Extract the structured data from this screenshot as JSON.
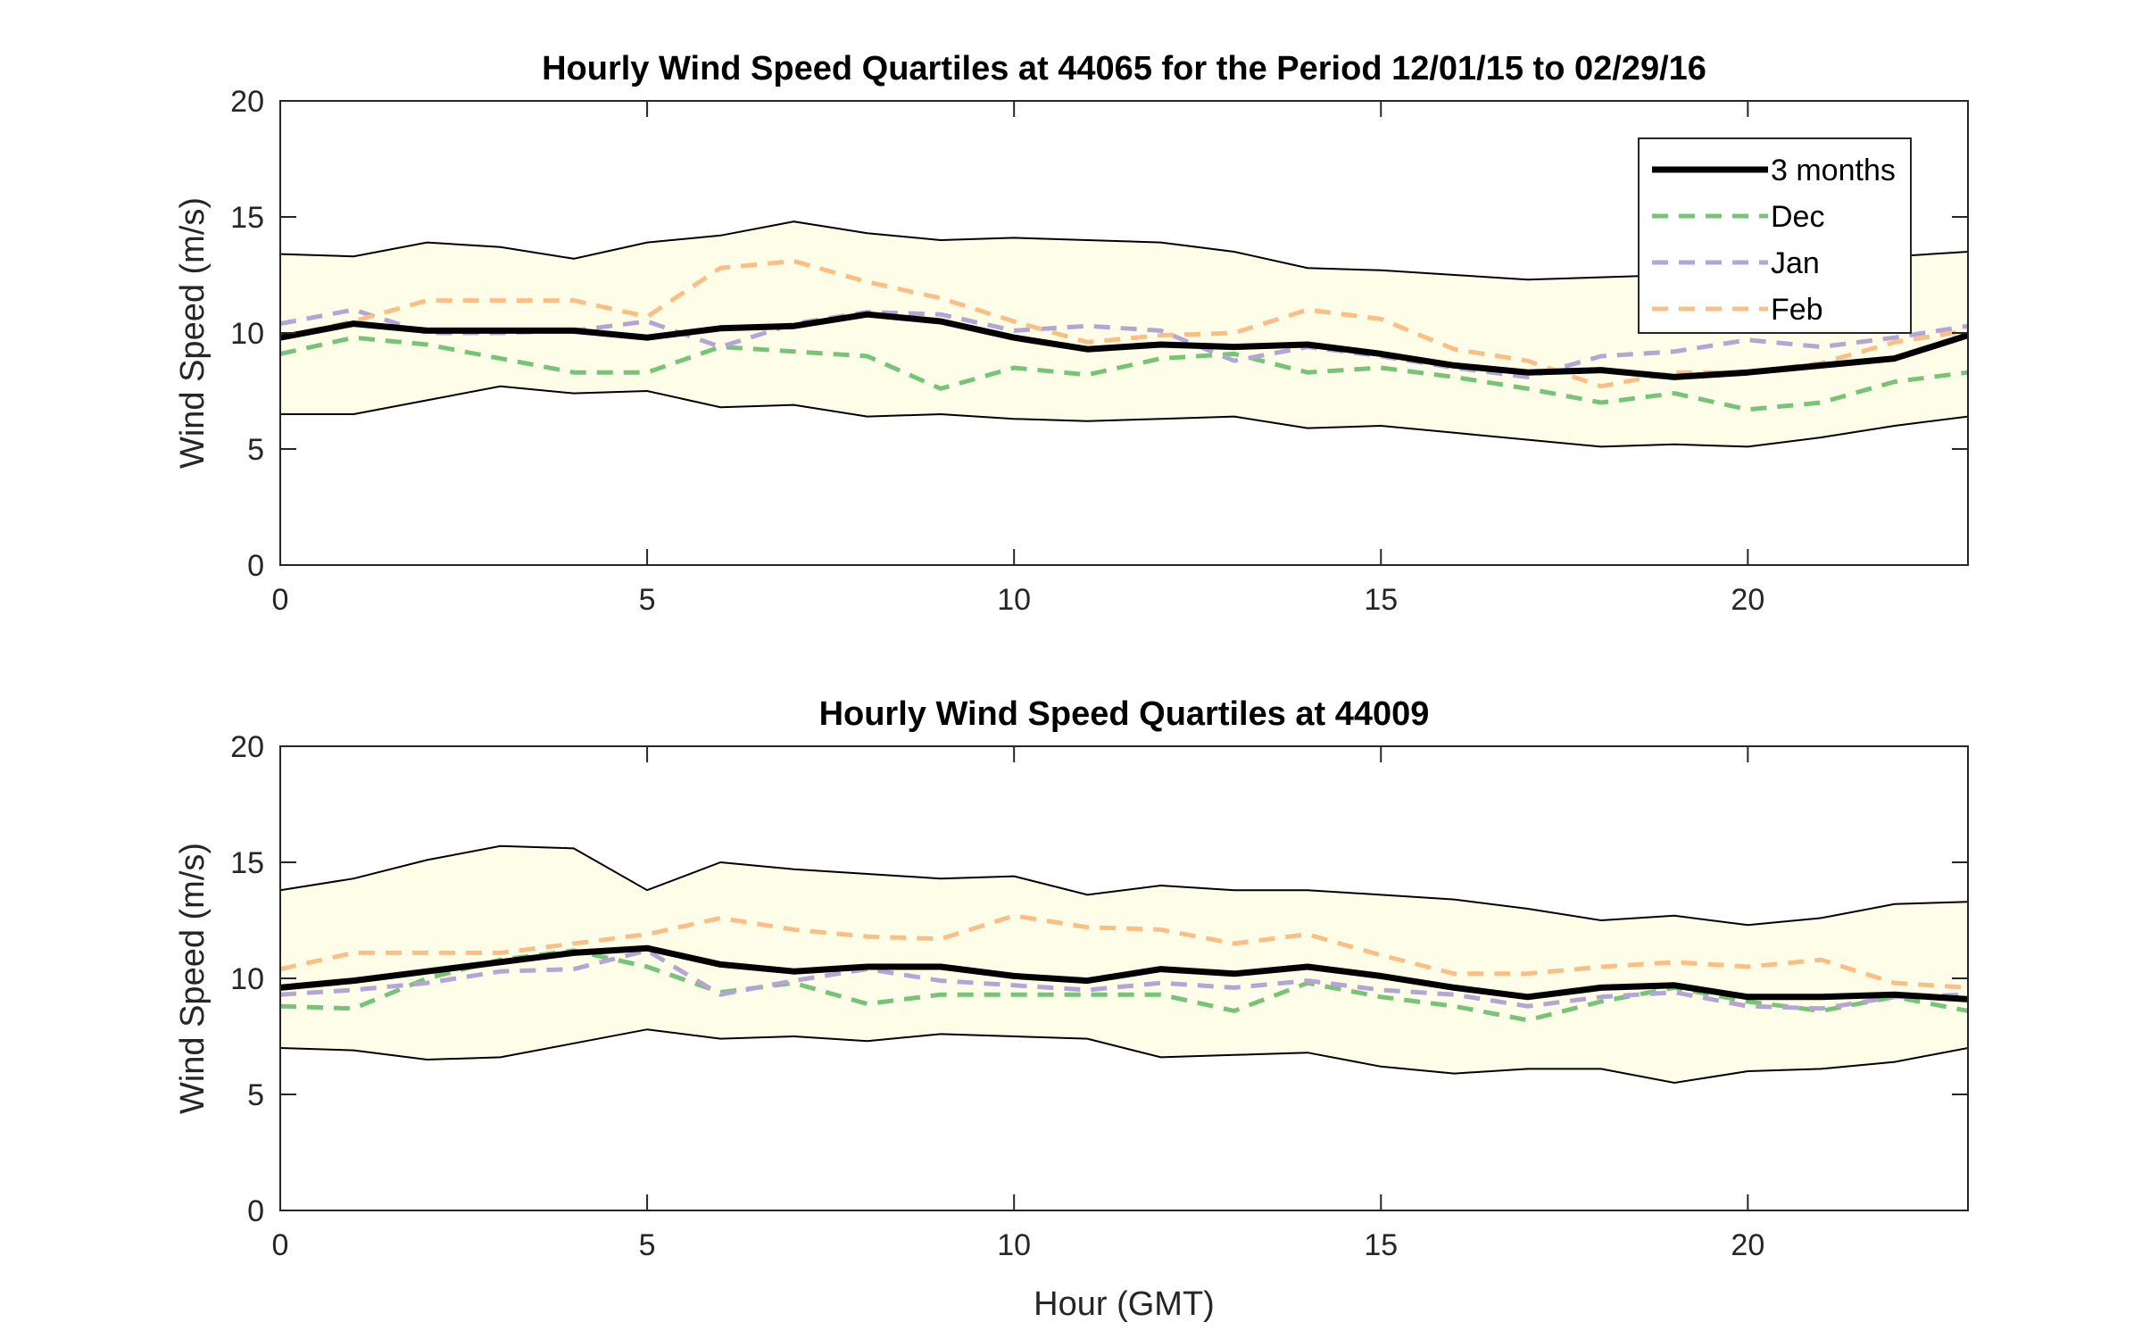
{
  "chart_data": [
    {
      "type": "line",
      "title": "Hourly Wind Speed Quartiles at 44065 for the Period 12/01/15 to 02/29/16",
      "xlabel": "",
      "ylabel": "Wind Speed (m/s)",
      "xlim": [
        0,
        23
      ],
      "ylim": [
        0,
        20
      ],
      "xticks": [
        0,
        5,
        10,
        15,
        20
      ],
      "yticks": [
        0,
        5,
        10,
        15,
        20
      ],
      "grid": false,
      "legend": {
        "placement": "top-right",
        "entries": [
          "3 months",
          "Dec",
          "Jan",
          "Feb"
        ]
      },
      "x": [
        0,
        1,
        2,
        3,
        4,
        5,
        6,
        7,
        8,
        9,
        10,
        11,
        12,
        13,
        14,
        15,
        16,
        17,
        18,
        19,
        20,
        21,
        22,
        23
      ],
      "band": {
        "fill": "#fefde8",
        "lower": [
          6.5,
          6.5,
          7.1,
          7.7,
          7.4,
          7.5,
          6.8,
          6.9,
          6.4,
          6.5,
          6.3,
          6.2,
          6.3,
          6.4,
          5.9,
          6.0,
          5.7,
          5.4,
          5.1,
          5.2,
          5.1,
          5.5,
          6.0,
          6.4
        ],
        "upper": [
          13.4,
          13.3,
          13.9,
          13.7,
          13.2,
          13.9,
          14.2,
          14.8,
          14.3,
          14.0,
          14.1,
          14.0,
          13.9,
          13.5,
          12.8,
          12.7,
          12.5,
          12.3,
          12.4,
          12.5,
          12.4,
          13.0,
          13.3,
          13.5
        ]
      },
      "series": [
        {
          "name": "3 months",
          "color": "#000000",
          "style": "solid",
          "values": [
            9.8,
            10.4,
            10.1,
            10.1,
            10.1,
            9.8,
            10.2,
            10.3,
            10.8,
            10.5,
            9.8,
            9.3,
            9.5,
            9.4,
            9.5,
            9.1,
            8.6,
            8.3,
            8.4,
            8.1,
            8.3,
            8.6,
            8.9,
            9.9
          ]
        },
        {
          "name": "Dec",
          "color": "#77c479",
          "style": "dashed",
          "values": [
            9.1,
            9.8,
            9.5,
            8.9,
            8.3,
            8.3,
            9.4,
            9.2,
            9.0,
            7.6,
            8.5,
            8.2,
            8.9,
            9.1,
            8.3,
            8.5,
            8.1,
            7.6,
            7.0,
            7.4,
            6.7,
            7.0,
            7.9,
            8.3
          ]
        },
        {
          "name": "Jan",
          "color": "#b3a6d6",
          "style": "dashed",
          "values": [
            10.4,
            11.0,
            10.0,
            10.0,
            10.1,
            10.5,
            9.4,
            10.4,
            10.9,
            10.8,
            10.1,
            10.3,
            10.1,
            8.8,
            9.4,
            9.0,
            8.5,
            8.1,
            9.0,
            9.2,
            9.7,
            9.4,
            9.8,
            10.3
          ]
        },
        {
          "name": "Feb",
          "color": "#fbbf86",
          "style": "dashed",
          "values": [
            9.8,
            10.5,
            11.4,
            11.4,
            11.4,
            10.7,
            12.8,
            13.1,
            12.2,
            11.5,
            10.5,
            9.6,
            9.9,
            10.0,
            11.0,
            10.6,
            9.3,
            8.8,
            7.7,
            8.3,
            8.3,
            8.7,
            9.6,
            10.1
          ]
        }
      ]
    },
    {
      "type": "line",
      "title": "Hourly Wind Speed Quartiles at 44009",
      "xlabel": "Hour (GMT)",
      "ylabel": "Wind Speed (m/s)",
      "xlim": [
        0,
        23
      ],
      "ylim": [
        0,
        20
      ],
      "xticks": [
        0,
        5,
        10,
        15,
        20
      ],
      "yticks": [
        0,
        5,
        10,
        15,
        20
      ],
      "grid": false,
      "x": [
        0,
        1,
        2,
        3,
        4,
        5,
        6,
        7,
        8,
        9,
        10,
        11,
        12,
        13,
        14,
        15,
        16,
        17,
        18,
        19,
        20,
        21,
        22,
        23
      ],
      "band": {
        "fill": "#fefde8",
        "lower": [
          7.0,
          6.9,
          6.5,
          6.6,
          7.2,
          7.8,
          7.4,
          7.5,
          7.3,
          7.6,
          7.5,
          7.4,
          6.6,
          6.7,
          6.8,
          6.2,
          5.9,
          6.1,
          6.1,
          5.5,
          6.0,
          6.1,
          6.4,
          7.0
        ],
        "upper": [
          13.8,
          14.3,
          15.1,
          15.7,
          15.6,
          13.8,
          15.0,
          14.7,
          14.5,
          14.3,
          14.4,
          13.6,
          14.0,
          13.8,
          13.8,
          13.6,
          13.4,
          13.0,
          12.5,
          12.7,
          12.3,
          12.6,
          13.2,
          13.3
        ]
      },
      "series": [
        {
          "name": "3 months",
          "color": "#000000",
          "style": "solid",
          "values": [
            9.6,
            9.9,
            10.3,
            10.7,
            11.1,
            11.3,
            10.6,
            10.3,
            10.5,
            10.5,
            10.1,
            9.9,
            10.4,
            10.2,
            10.5,
            10.1,
            9.6,
            9.2,
            9.6,
            9.7,
            9.2,
            9.2,
            9.3,
            9.1
          ]
        },
        {
          "name": "Dec",
          "color": "#77c479",
          "style": "dashed",
          "values": [
            8.8,
            8.7,
            10.0,
            10.8,
            11.2,
            10.5,
            9.4,
            9.8,
            8.9,
            9.3,
            9.3,
            9.3,
            9.3,
            8.6,
            9.8,
            9.2,
            8.8,
            8.2,
            9.0,
            9.6,
            9.0,
            8.6,
            9.2,
            8.6
          ]
        },
        {
          "name": "Jan",
          "color": "#b3a6d6",
          "style": "dashed",
          "values": [
            9.3,
            9.5,
            9.8,
            10.3,
            10.4,
            11.2,
            9.3,
            9.9,
            10.4,
            9.9,
            9.7,
            9.5,
            9.8,
            9.6,
            9.9,
            9.5,
            9.3,
            8.8,
            9.2,
            9.4,
            8.8,
            8.7,
            9.2,
            9.3
          ]
        },
        {
          "name": "Feb",
          "color": "#fbbf86",
          "style": "dashed",
          "values": [
            10.4,
            11.1,
            11.1,
            11.1,
            11.5,
            11.9,
            12.6,
            12.1,
            11.8,
            11.7,
            12.7,
            12.2,
            12.1,
            11.5,
            11.9,
            11.0,
            10.2,
            10.2,
            10.5,
            10.7,
            10.5,
            10.8,
            9.8,
            9.6
          ]
        }
      ]
    }
  ]
}
